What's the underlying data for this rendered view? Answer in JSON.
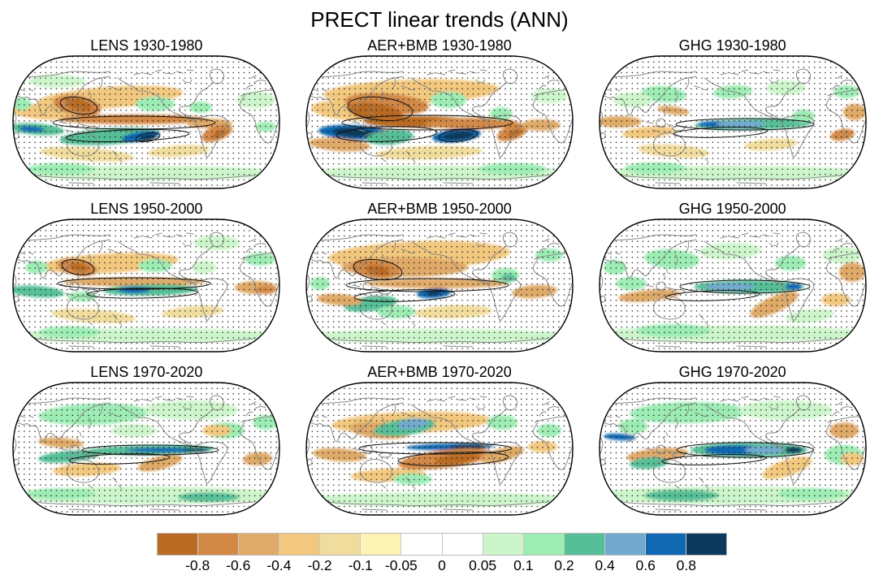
{
  "figure_title": "PRECT linear trends (ANN)",
  "panels": [
    {
      "id": "lens-1930-1980",
      "label": "LENS 1930-1980",
      "experiment": "LENS",
      "period": "1930-1980"
    },
    {
      "id": "aerbmb-1930-1980",
      "label": "AER+BMB 1930-1980",
      "experiment": "AER+BMB",
      "period": "1930-1980"
    },
    {
      "id": "ghg-1930-1980",
      "label": "GHG 1930-1980",
      "experiment": "GHG",
      "period": "1930-1980"
    },
    {
      "id": "lens-1950-2000",
      "label": "LENS 1950-2000",
      "experiment": "LENS",
      "period": "1950-2000"
    },
    {
      "id": "aerbmb-1950-2000",
      "label": "AER+BMB 1950-2000",
      "experiment": "AER+BMB",
      "period": "1950-2000"
    },
    {
      "id": "ghg-1950-2000",
      "label": "GHG 1950-2000",
      "experiment": "GHG",
      "period": "1950-2000"
    },
    {
      "id": "lens-1970-2020",
      "label": "LENS 1970-2020",
      "experiment": "LENS",
      "period": "1970-2020"
    },
    {
      "id": "aerbmb-1970-2020",
      "label": "AER+BMB 1970-2020",
      "experiment": "AER+BMB",
      "period": "1970-2020"
    },
    {
      "id": "ghg-1970-2020",
      "label": "GHG 1970-2020",
      "experiment": "GHG",
      "period": "1970-2020"
    }
  ],
  "colorbar": {
    "tick_labels": [
      "-0.8",
      "-0.6",
      "-0.4",
      "-0.2",
      "-0.1",
      "-0.05",
      "0",
      "0.05",
      "0.1",
      "0.2",
      "0.4",
      "0.6",
      "0.8"
    ],
    "segment_colors": [
      "#b96b23",
      "#d28946",
      "#dfa967",
      "#f2c77e",
      "#f0dc9c",
      "#fcf3b5",
      "#ffffff",
      "#ffffff",
      "#cdf5cb",
      "#9cecb4",
      "#57bf97",
      "#72a9cd",
      "#1168b2",
      "#0c3a5c"
    ]
  },
  "chart_data": {
    "type": "heatmap",
    "subtype": "global-trend-map-grid",
    "title": "PRECT linear trends (ANN)",
    "variable": "PRECT",
    "season": "ANN",
    "grid": {
      "columns": [
        "LENS",
        "AER+BMB",
        "GHG"
      ],
      "rows": [
        "1930-1980",
        "1950-2000",
        "1970-2020"
      ]
    },
    "projection": "Robinson, Pacific-centered",
    "stippling": "black dot stippling over most map regions",
    "coastlines": "gray",
    "contours": "black contour outlines around strongest trend regions",
    "colorbar_levels": [
      -0.8,
      -0.6,
      -0.4,
      -0.2,
      -0.1,
      -0.05,
      0,
      0.05,
      0.1,
      0.2,
      0.4,
      0.6,
      0.8
    ],
    "colorbar_colors": [
      "#b96b23",
      "#d28946",
      "#dfa967",
      "#f2c77e",
      "#f0dc9c",
      "#fcf3b5",
      "#ffffff",
      "#ffffff",
      "#cdf5cb",
      "#9cecb4",
      "#57bf97",
      "#72a9cd",
      "#1168b2",
      "#0c3a5c"
    ],
    "legend_position": "bottom",
    "panel_summaries": [
      "Drying (brown) over East Asia and tropical N Pacific band; wetting (teal/dark blue) in S-central Pacific and Indian Ocean",
      "Strongest signals: heavy drying across Asia and the tropical N Pacific; intense wetting (dark blue) near the Maritime Continent and S-central Pacific",
      "Weak overall; narrow equatorial Pacific wetting tongue (teal/blue), light subtropical drying",
      "Drying band north of equator; equatorial wetting tongue with small blue core; green Southern Ocean band",
      "Widespread Northern Hemisphere drying (orange); localized equatorial wetting blob (blue)",
      "Broad equatorial Pacific wetting band (teal) and widespread light wetting (pale green)",
      "Equatorial wetting with narrow intense blue core reaching South America; broad light wetting elsewhere",
      "Wet band (blue) just north of equator over Pacific; strong drying wedge (brown) south of it",
      "Strong broad equatorial Pacific wetting (teal/blue); widespread light wetting, subtropical drying patches"
    ]
  },
  "styles": {
    "coastline_color": "#8a8a8a",
    "map_outline_color": "#000000",
    "stipple_color": "#141414"
  }
}
